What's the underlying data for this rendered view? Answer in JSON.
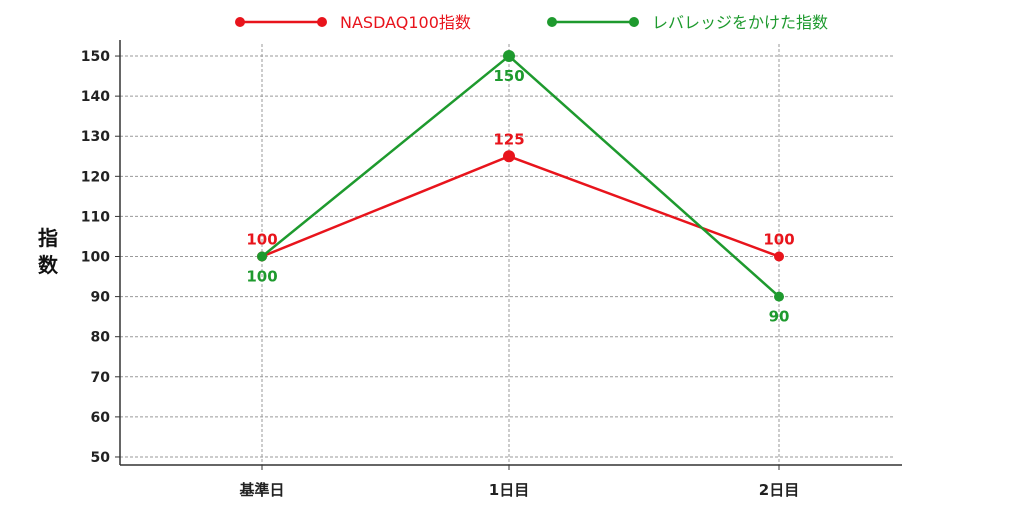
{
  "chart_data": {
    "type": "line",
    "categories": [
      "基準日",
      "1日目",
      "2日目"
    ],
    "ylabel_chars": [
      "指",
      "数"
    ],
    "ylim": [
      48,
      154
    ],
    "y_ticks": [
      50,
      60,
      70,
      80,
      90,
      100,
      110,
      120,
      130,
      140,
      150
    ],
    "grid": true,
    "legend_position": "top-center",
    "series": [
      {
        "name": "NASDAQ100指数",
        "color": "#e8141c",
        "values": [
          100,
          125,
          100
        ],
        "labels": [
          "100",
          "125",
          "100"
        ],
        "label_side": [
          "above",
          "above",
          "above"
        ]
      },
      {
        "name": "レバレッジをかけた指数",
        "color": "#1e9a2e",
        "values": [
          100,
          150,
          90
        ],
        "labels": [
          "100",
          "150",
          "90"
        ],
        "label_side": [
          "below",
          "below",
          "below"
        ]
      }
    ]
  }
}
